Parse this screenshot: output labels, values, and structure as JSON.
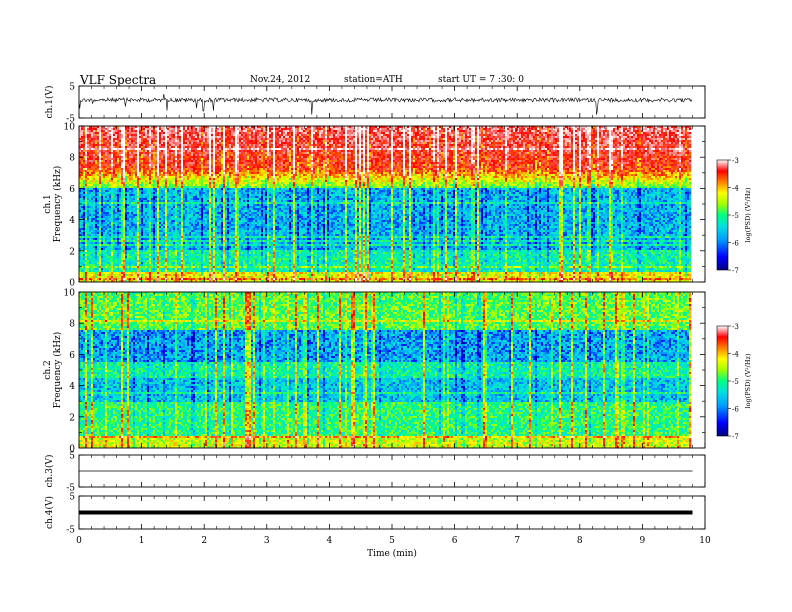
{
  "header": {
    "title": "VLF  Spectra",
    "date": "Nov.24, 2012",
    "station": "station=ATH",
    "start": "start  UT  =   7  :30: 0"
  },
  "chart_data": {
    "type": "multi-panel spectrogram + waveform",
    "x_axis": {
      "label": "Time  (min)",
      "range": [
        0,
        10
      ],
      "ticks": [
        "0",
        "1",
        "2",
        "3",
        "4",
        "5",
        "6",
        "7",
        "8",
        "9",
        "10"
      ],
      "data_end": 9.8
    },
    "panels": [
      {
        "id": "ch1-wave",
        "type": "line",
        "ylabel": "ch.1(V)",
        "ylim": [
          -5,
          5
        ],
        "yticks": [
          "5",
          "-5"
        ],
        "baseline": 0,
        "color": "#000000"
      },
      {
        "id": "ch1-spec",
        "type": "heatmap",
        "ylabel": [
          "ch.1",
          "Frequency  (kHz)"
        ],
        "ylim": [
          0,
          10
        ],
        "yticks": [
          "10",
          "8",
          "6",
          "4",
          "2",
          "0"
        ],
        "colorbar": {
          "label": "log(PSD) (V²/Hz)",
          "range": [
            -7,
            -3
          ],
          "ticks": [
            "-3",
            "-4",
            "-5",
            "-6",
            "-7"
          ]
        }
      },
      {
        "id": "ch2-spec",
        "type": "heatmap",
        "ylabel": [
          "ch.2",
          "Frequency  (kHz)"
        ],
        "ylim": [
          0,
          10
        ],
        "yticks": [
          "10",
          "8",
          "6",
          "4",
          "2",
          "0"
        ],
        "colorbar": {
          "label": "log(PSD) (V²/Hz)",
          "range": [
            -7,
            -3
          ],
          "ticks": [
            "-3",
            "-4",
            "-5",
            "-6",
            "-7"
          ]
        }
      },
      {
        "id": "ch3-wave",
        "type": "line",
        "ylabel": "ch.3(V)",
        "ylim": [
          -5,
          5
        ],
        "yticks": [
          "5",
          "-5"
        ],
        "baseline": 0,
        "color": "#000000"
      },
      {
        "id": "ch4-wave",
        "type": "line",
        "ylabel": "ch.4(V)",
        "ylim": [
          -5,
          5
        ],
        "yticks": [
          "5",
          "-5"
        ],
        "baseline": 0,
        "color": "#000000"
      }
    ],
    "colormap": [
      "#000080",
      "#0000ff",
      "#00a0ff",
      "#00e0e0",
      "#00ff80",
      "#a0ff00",
      "#ffff00",
      "#ff8000",
      "#ff0000",
      "#ff8080",
      "#ffffff"
    ]
  }
}
